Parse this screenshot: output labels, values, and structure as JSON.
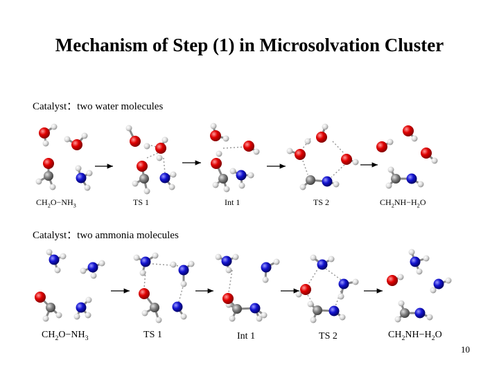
{
  "slide": {
    "title": "Mechanism of Step (1) in Microsolvation Cluster",
    "page_number": "10"
  },
  "row1": {
    "label": "Catalyst：two water molecules",
    "species": [
      "CH2O−NH3",
      "TS 1",
      "Int 1",
      "TS 2",
      "CH2NH−H2O"
    ]
  },
  "row2": {
    "label": "Catalyst：two ammonia molecules",
    "species": [
      "CH2O−NH3",
      "TS 1",
      "Int 1",
      "TS 2",
      "CH2NH−H2O"
    ]
  },
  "atom_colors": {
    "oxygen": "#d40000",
    "nitrogen": "#1010c8",
    "carbon": "#7a7a7a",
    "hydrogen": "#d8d8d8"
  }
}
